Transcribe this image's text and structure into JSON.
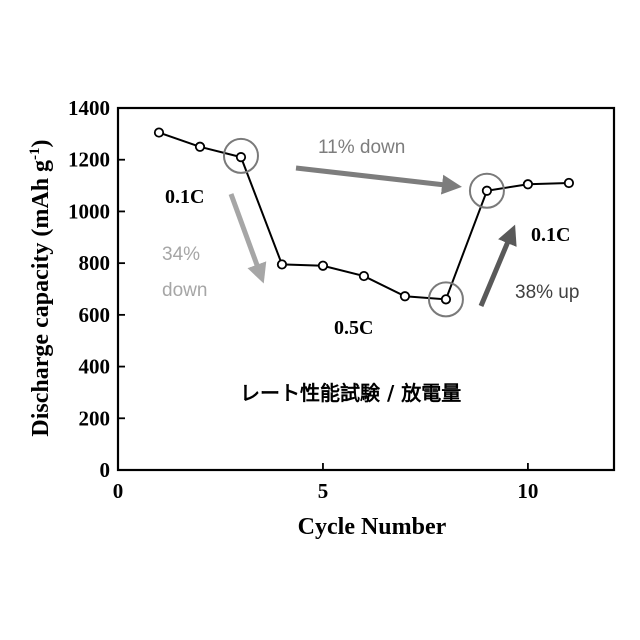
{
  "chart_data": {
    "type": "line",
    "xlabel": "Cycle Number",
    "ylabel": "Discharge capacity (mAh g",
    "ylabel_sup": "-1",
    "ylabel_close": ")",
    "xlim": [
      0,
      12.1
    ],
    "ylim": [
      0,
      1400
    ],
    "xticks": [
      0,
      5,
      10
    ],
    "yticks": [
      0,
      200,
      400,
      600,
      800,
      1000,
      1200,
      1400
    ],
    "grid": false,
    "series": [
      {
        "x": [
          1,
          2,
          3,
          4,
          5,
          6,
          7,
          8,
          9,
          10,
          11
        ],
        "y": [
          1305,
          1250,
          1210,
          795,
          790,
          750,
          672,
          660,
          1080,
          1105,
          1110
        ]
      }
    ],
    "highlights": [
      {
        "x": 3,
        "y": 1215
      },
      {
        "x": 8,
        "y": 660
      },
      {
        "x": 9,
        "y": 1080
      }
    ],
    "annotations": {
      "rate_left": "0.1C",
      "rate_middle": "0.5C",
      "rate_right": "0.1C",
      "change_top": "11% down",
      "change_left_1": "34%",
      "change_left_2": "down",
      "change_right": "38% up",
      "title_jp": "レート性能試験 / 放電量"
    },
    "colors": {
      "line": "#000000",
      "marker_fill": "#ffffff",
      "highlight": "#7a7a7a",
      "arrow_top": "#7d7d7d",
      "arrow_left": "#a6a6a6",
      "arrow_right": "#595959",
      "text_top": "#7d7d7d",
      "text_left": "#a6a6a6",
      "text_right": "#404040"
    }
  }
}
